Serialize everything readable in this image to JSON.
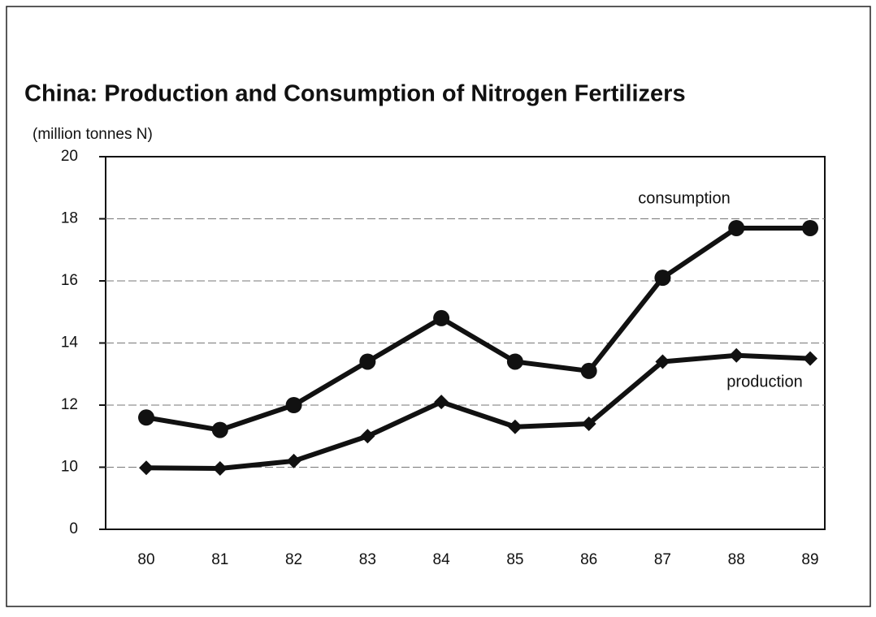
{
  "chart_data": {
    "type": "line",
    "title": "China: Production and Consumption of Nitrogen Fertilizers",
    "y_label": "(million tonnes N)",
    "categories": [
      "80",
      "81",
      "82",
      "83",
      "84",
      "85",
      "86",
      "87",
      "88",
      "89"
    ],
    "series": [
      {
        "name": "consumption",
        "color": "#111111",
        "marker": "circle",
        "values": [
          11.6,
          11.2,
          12.0,
          13.4,
          14.8,
          13.4,
          13.1,
          16.1,
          17.7,
          17.7
        ]
      },
      {
        "name": "production",
        "color": "#111111",
        "marker": "diamond",
        "values": [
          9.9,
          9.8,
          10.2,
          11.0,
          12.1,
          11.3,
          11.4,
          13.4,
          13.6,
          13.5
        ]
      }
    ],
    "ylim": [
      0,
      20
    ],
    "yticks": [
      0,
      10,
      12,
      14,
      16,
      18,
      20
    ],
    "grid": true
  }
}
